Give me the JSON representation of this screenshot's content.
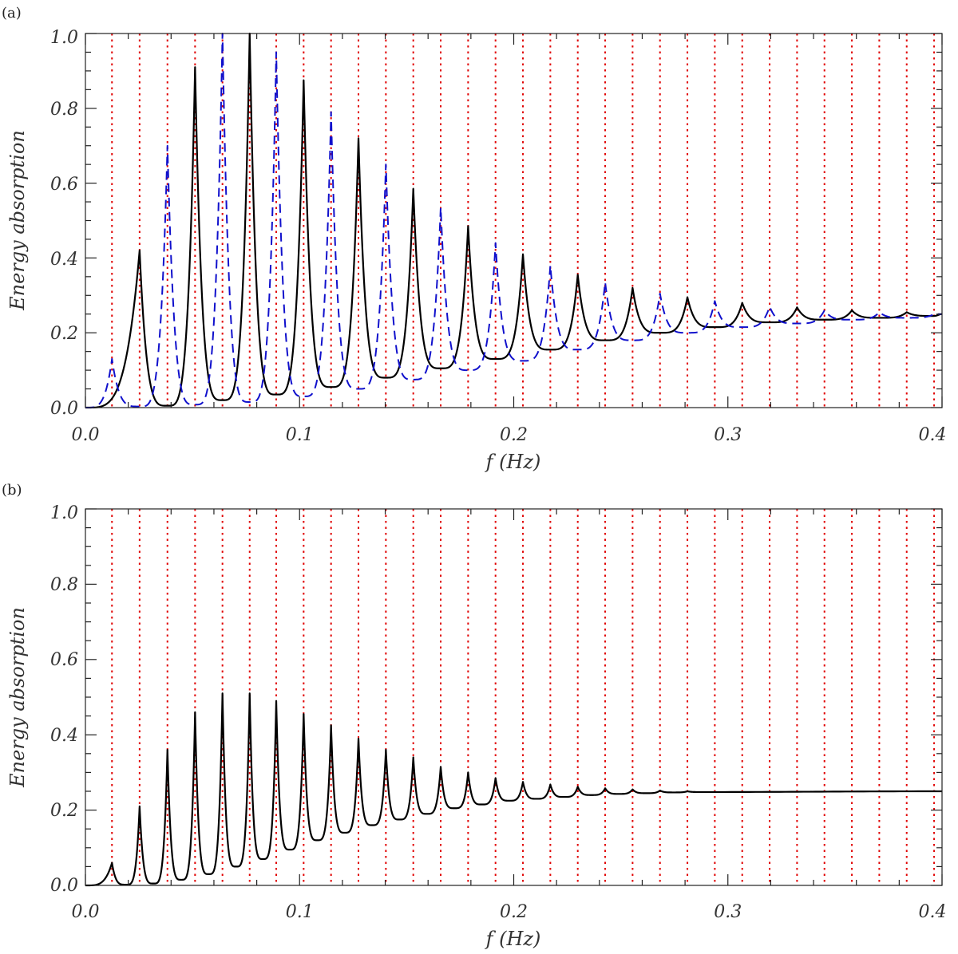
{
  "chart_data": [
    {
      "panel_label": "(a)",
      "type": "line",
      "xlabel": "f (Hz)",
      "ylabel": "Energy absorption",
      "xlim": [
        0.0,
        0.4
      ],
      "ylim": [
        0.0,
        1.0
      ],
      "xticks": [
        "0.0",
        "0.1",
        "0.2",
        "0.3",
        "0.4"
      ],
      "yticks": [
        "0.0",
        "0.2",
        "0.4",
        "0.6",
        "0.8",
        "1.0"
      ],
      "grid": false,
      "vertical_markers": {
        "style": "red-dotted",
        "x": [
          0.0124,
          0.0253,
          0.0383,
          0.0512,
          0.064,
          0.0767,
          0.0891,
          0.1019,
          0.1147,
          0.1275,
          0.1403,
          0.1531,
          0.1659,
          0.1787,
          0.1915,
          0.2043,
          0.2171,
          0.2299,
          0.2427,
          0.2555,
          0.2683,
          0.2811,
          0.2939,
          0.3067,
          0.3195,
          0.3323,
          0.3451,
          0.3579,
          0.3707,
          0.3835,
          0.3963
        ]
      },
      "series": [
        {
          "style": "solid-black",
          "peaks": {
            "x": [
              0.0253,
              0.0512,
              0.0767,
              0.1019,
              0.1275,
              0.1531,
              0.1787,
              0.2043,
              0.2299,
              0.2555,
              0.2811,
              0.3067,
              0.3323,
              0.3579,
              0.3835
            ],
            "y": [
              0.42,
              0.91,
              1.0,
              0.875,
              0.72,
              0.585,
              0.485,
              0.41,
              0.355,
              0.32,
              0.295,
              0.28,
              0.268,
              0.26,
              0.255
            ]
          },
          "troughs": {
            "x": [
              0.0,
              0.0383,
              0.064,
              0.0891,
              0.1147,
              0.1403,
              0.1659,
              0.1915,
              0.2171,
              0.2427,
              0.2683,
              0.2939,
              0.3195,
              0.3451,
              0.3707,
              0.3963
            ],
            "y": [
              0.0,
              0.005,
              0.02,
              0.035,
              0.055,
              0.08,
              0.105,
              0.13,
              0.155,
              0.18,
              0.2,
              0.215,
              0.228,
              0.235,
              0.24,
              0.245
            ]
          },
          "end_value": 0.25
        },
        {
          "style": "dashed-blue",
          "peaks": {
            "x": [
              0.0124,
              0.0383,
              0.064,
              0.0891,
              0.1147,
              0.1403,
              0.1659,
              0.1915,
              0.2171,
              0.2427,
              0.2683,
              0.2939,
              0.3195,
              0.3451,
              0.3707,
              0.3963
            ],
            "y": [
              0.13,
              0.7,
              1.0,
              0.95,
              0.79,
              0.65,
              0.535,
              0.44,
              0.38,
              0.335,
              0.305,
              0.285,
              0.27,
              0.26,
              0.255,
              0.25
            ]
          },
          "troughs": {
            "x": [
              0.0,
              0.0253,
              0.0512,
              0.0767,
              0.1019,
              0.1275,
              0.1531,
              0.1787,
              0.2043,
              0.2299,
              0.2555,
              0.2811,
              0.3067,
              0.3323,
              0.3579,
              0.3835
            ],
            "y": [
              0.0,
              0.003,
              0.008,
              0.015,
              0.03,
              0.05,
              0.075,
              0.1,
              0.125,
              0.155,
              0.18,
              0.2,
              0.215,
              0.225,
              0.235,
              0.24
            ]
          },
          "end_value": 0.25
        }
      ]
    },
    {
      "panel_label": "(b)",
      "type": "line",
      "xlabel": "f (Hz)",
      "ylabel": "Energy absorption",
      "xlim": [
        0.0,
        0.4
      ],
      "ylim": [
        0.0,
        1.0
      ],
      "xticks": [
        "0.0",
        "0.1",
        "0.2",
        "0.3",
        "0.4"
      ],
      "yticks": [
        "0.0",
        "0.2",
        "0.4",
        "0.6",
        "0.8",
        "1.0"
      ],
      "grid": false,
      "vertical_markers": {
        "style": "red-dotted",
        "x": [
          0.0124,
          0.0253,
          0.0383,
          0.0512,
          0.064,
          0.0767,
          0.0891,
          0.1019,
          0.1147,
          0.1275,
          0.1403,
          0.1531,
          0.1659,
          0.1787,
          0.1915,
          0.2043,
          0.2171,
          0.2299,
          0.2427,
          0.2555,
          0.2683,
          0.2811,
          0.2939,
          0.3067,
          0.3195,
          0.3323,
          0.3451,
          0.3579,
          0.3707,
          0.3835,
          0.3963
        ]
      },
      "series": [
        {
          "style": "solid-black",
          "peaks": {
            "x": [
              0.0124,
              0.0253,
              0.0383,
              0.0512,
              0.064,
              0.0767,
              0.0891,
              0.1019,
              0.1147,
              0.1275,
              0.1403,
              0.1531,
              0.1659,
              0.1787,
              0.1915,
              0.2043,
              0.2171,
              0.2299,
              0.2427,
              0.2555,
              0.2683,
              0.2811
            ],
            "y": [
              0.06,
              0.21,
              0.36,
              0.46,
              0.51,
              0.51,
              0.49,
              0.455,
              0.425,
              0.39,
              0.36,
              0.34,
              0.315,
              0.3,
              0.285,
              0.275,
              0.268,
              0.262,
              0.258,
              0.255,
              0.252,
              0.25
            ]
          },
          "troughs": {
            "x": [
              0.0,
              0.019,
              0.0318,
              0.0448,
              0.0576,
              0.0704,
              0.0829,
              0.0955,
              0.1083,
              0.1211,
              0.1339,
              0.1467,
              0.1595,
              0.1723,
              0.1851,
              0.1979,
              0.2107,
              0.2235,
              0.2363,
              0.2491,
              0.2619,
              0.2747,
              0.2875
            ],
            "y": [
              0.0,
              0.002,
              0.005,
              0.015,
              0.03,
              0.05,
              0.07,
              0.095,
              0.12,
              0.14,
              0.16,
              0.175,
              0.19,
              0.205,
              0.215,
              0.225,
              0.23,
              0.235,
              0.24,
              0.243,
              0.245,
              0.247,
              0.248
            ]
          },
          "end_value": 0.25
        }
      ]
    }
  ]
}
